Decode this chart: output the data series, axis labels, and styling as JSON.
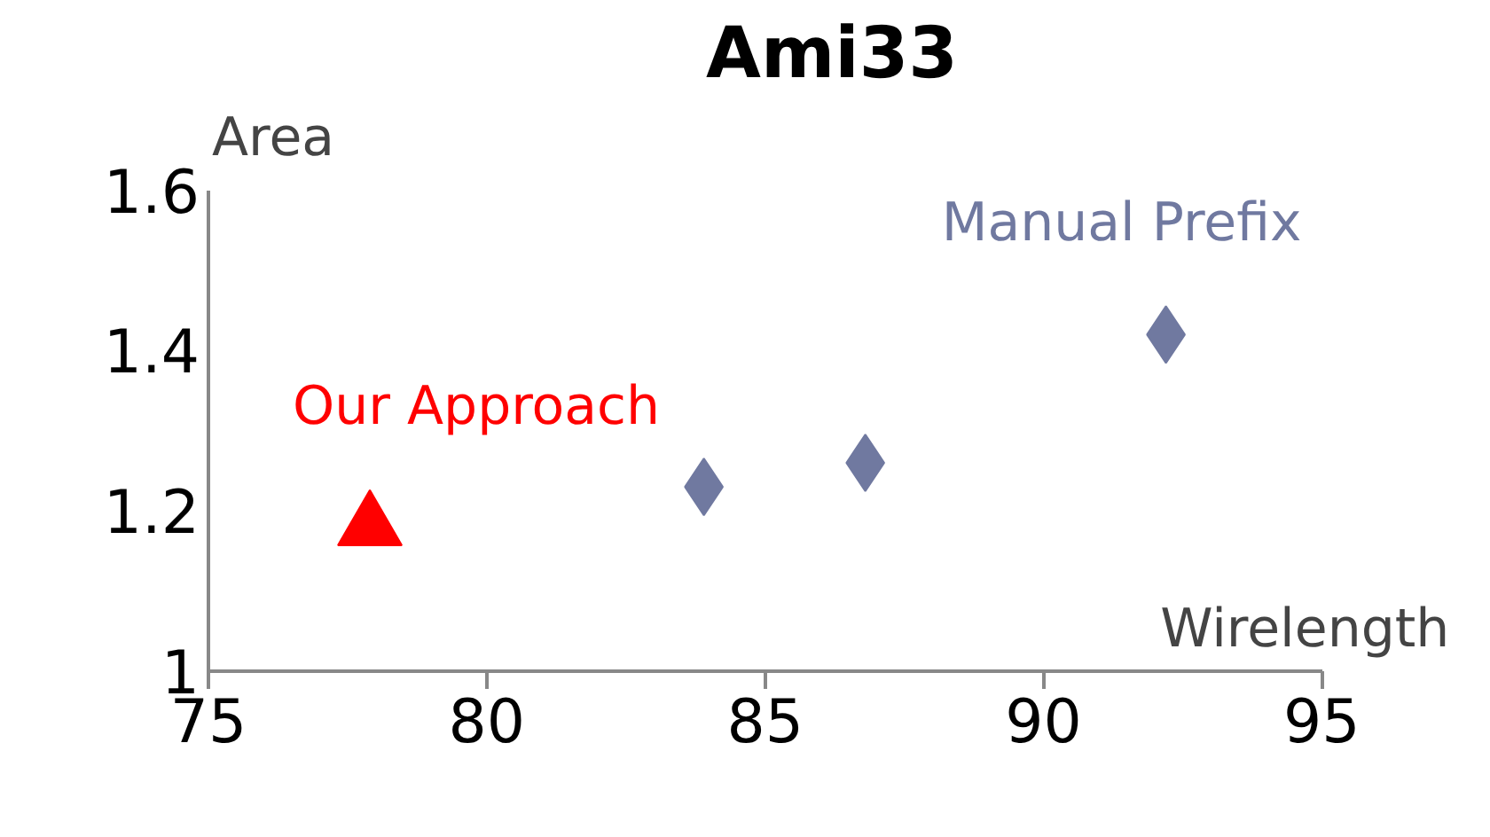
{
  "chart_data": {
    "type": "scatter",
    "title": "Ami33",
    "xlabel": "Wirelength",
    "ylabel": "Area",
    "xlim": [
      75,
      95
    ],
    "xticks": [
      75,
      80,
      85,
      90,
      95
    ],
    "ylim": [
      1,
      1.6
    ],
    "yticks": [
      1,
      1.2,
      1.4,
      1.6
    ],
    "grid": false,
    "legend": false,
    "series": [
      {
        "name": "Our Approach",
        "color": "#ff0000",
        "marker": "triangle",
        "x": [
          77.9
        ],
        "values": [
          1.18
        ]
      },
      {
        "name": "Manual Prefix",
        "color": "#7079a0",
        "marker": "diamond",
        "x": [
          83.9,
          86.8,
          92.2
        ],
        "values": [
          1.23,
          1.26,
          1.42
        ]
      }
    ]
  }
}
